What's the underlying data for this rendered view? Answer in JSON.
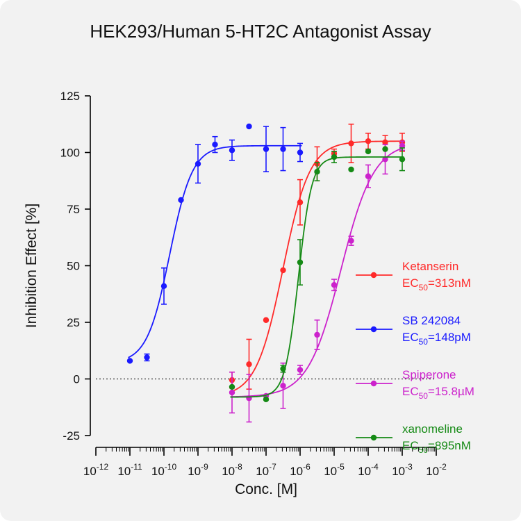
{
  "chart_data": {
    "type": "scatter",
    "title": "HEK293/Human 5-HT2C Antagonist Assay",
    "xlabel": "Conc. [M]",
    "ylabel": "Inhibition Effect [%]",
    "x_scale": "log",
    "xlim_exponent": [
      -12,
      -2
    ],
    "ylim": [
      -25,
      125
    ],
    "y_ticks": [
      -25,
      0,
      25,
      50,
      75,
      100,
      125
    ],
    "x_tick_exponents": [
      -12,
      -11,
      -10,
      -9,
      -8,
      -7,
      -6,
      -5,
      -4,
      -3,
      -2
    ],
    "x_tick_base": "10",
    "zero_line": "dotted",
    "legend_position": "right",
    "series": [
      {
        "name": "Ketanserin",
        "ec50_label": "313nM",
        "color": "#ff2a2a",
        "fit": {
          "bottom": -8,
          "top": 105,
          "logEC50": -6.504,
          "hill": 1.1
        },
        "points": [
          {
            "logx": -8.0,
            "y": -0.5,
            "err": 3.5
          },
          {
            "logx": -7.5,
            "y": 6.5,
            "err": 11
          },
          {
            "logx": -7.0,
            "y": 26,
            "err": 0
          },
          {
            "logx": -6.5,
            "y": 48,
            "err": 0
          },
          {
            "logx": -6.0,
            "y": 78,
            "err": 10
          },
          {
            "logx": -5.5,
            "y": 95,
            "err": 7.5
          },
          {
            "logx": -5.0,
            "y": 99.5,
            "err": 2
          },
          {
            "logx": -4.5,
            "y": 104,
            "err": 8.5
          },
          {
            "logx": -4.0,
            "y": 105,
            "err": 3.5
          },
          {
            "logx": -3.5,
            "y": 104.5,
            "err": 3
          },
          {
            "logx": -3.0,
            "y": 104.5,
            "err": 4
          }
        ]
      },
      {
        "name": "SB 242084",
        "ec50_label": "148pM",
        "color": "#1a1aff",
        "fit": {
          "bottom": 7,
          "top": 103,
          "logEC50": -9.83,
          "hill": 1.3
        },
        "points": [
          {
            "logx": -11.0,
            "y": 8,
            "err": 0
          },
          {
            "logx": -10.5,
            "y": 9.5,
            "err": 1.5
          },
          {
            "logx": -10.0,
            "y": 41,
            "err": 8
          },
          {
            "logx": -9.5,
            "y": 79,
            "err": 0
          },
          {
            "logx": -9.0,
            "y": 95,
            "err": 8.5
          },
          {
            "logx": -8.5,
            "y": 103.5,
            "err": 3.5
          },
          {
            "logx": -8.0,
            "y": 101,
            "err": 4.5
          },
          {
            "logx": -7.5,
            "y": 111.5,
            "err": 0
          },
          {
            "logx": -7.0,
            "y": 101.5,
            "err": 10
          },
          {
            "logx": -6.5,
            "y": 101.5,
            "err": 9.5
          },
          {
            "logx": -6.0,
            "y": 100,
            "err": 4
          }
        ]
      },
      {
        "name": "Spiperone",
        "ec50_label": "15.8µM",
        "color": "#cc22cc",
        "fit": {
          "bottom": -8,
          "top": 104.5,
          "logEC50": -4.8,
          "hill": 0.9
        },
        "points": [
          {
            "logx": -8.0,
            "y": -6,
            "err": 9
          },
          {
            "logx": -7.5,
            "y": -8.5,
            "err": 10.5
          },
          {
            "logx": -7.0,
            "y": -7.5,
            "err": 0
          },
          {
            "logx": -6.5,
            "y": -3,
            "err": 10
          },
          {
            "logx": -6.0,
            "y": 4,
            "err": 2
          },
          {
            "logx": -5.5,
            "y": 19.5,
            "err": 6.5
          },
          {
            "logx": -5.0,
            "y": 41.5,
            "err": 2.5
          },
          {
            "logx": -4.5,
            "y": 61,
            "err": 2
          },
          {
            "logx": -4.0,
            "y": 89.5,
            "err": 5
          },
          {
            "logx": -3.5,
            "y": 97,
            "err": 6.5
          },
          {
            "logx": -3.0,
            "y": 103,
            "err": 2
          }
        ]
      },
      {
        "name": "xanomeline",
        "ec50_label": "895nM",
        "color": "#158a15",
        "fit": {
          "bottom": -8,
          "top": 98,
          "logEC50": -6.048,
          "hill": 2.2
        },
        "points": [
          {
            "logx": -8.0,
            "y": -3.5,
            "err": 0
          },
          {
            "logx": -7.0,
            "y": -9,
            "err": 0
          },
          {
            "logx": -6.5,
            "y": 4.5,
            "err": 1.5
          },
          {
            "logx": -6.0,
            "y": 51.5,
            "err": 10
          },
          {
            "logx": -5.5,
            "y": 91.5,
            "err": 4
          },
          {
            "logx": -5.0,
            "y": 98,
            "err": 2.5
          },
          {
            "logx": -4.5,
            "y": 92.5,
            "err": 0
          },
          {
            "logx": -4.0,
            "y": 100.5,
            "err": 0
          },
          {
            "logx": -3.5,
            "y": 101.5,
            "err": 0
          },
          {
            "logx": -3.0,
            "y": 97,
            "err": 5
          }
        ]
      }
    ]
  },
  "legend": {
    "ec50_prefix": "EC",
    "ec50_sub": "50",
    "ec50_eq": "="
  }
}
